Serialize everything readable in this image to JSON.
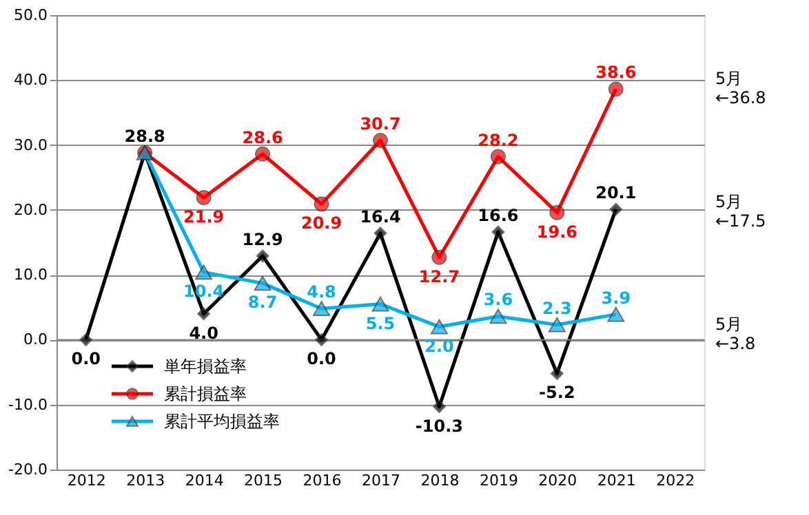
{
  "chart_data": {
    "type": "line",
    "categories": [
      "2012",
      "2013",
      "2014",
      "2015",
      "2016",
      "2017",
      "2018",
      "2019",
      "2020",
      "2021",
      "2022"
    ],
    "series": [
      {
        "name": "単年損益率",
        "color": "#000000",
        "marker": "diamond",
        "values": [
          0.0,
          28.8,
          4.0,
          12.9,
          0.0,
          16.4,
          -10.3,
          16.6,
          -5.2,
          20.1,
          null
        ],
        "value_labels": [
          "0.0",
          "28.8",
          "4.0",
          "12.9",
          "0.0",
          "16.4",
          "-10.3",
          "16.6",
          "-5.2",
          "20.1",
          null
        ]
      },
      {
        "name": "累計損益率",
        "color": "#ff0000",
        "marker": "circle",
        "values": [
          null,
          28.8,
          21.9,
          28.6,
          20.9,
          30.7,
          12.7,
          28.2,
          19.6,
          38.6,
          null
        ],
        "value_labels": [
          null,
          null,
          "21.9",
          "28.6",
          "20.9",
          "30.7",
          "12.7",
          "28.2",
          "19.6",
          "38.6",
          null
        ]
      },
      {
        "name": "累計平均損益率",
        "color": "#00b0f0",
        "marker": "triangle",
        "values": [
          null,
          28.8,
          10.4,
          8.7,
          4.8,
          5.5,
          2.0,
          3.6,
          2.3,
          3.9,
          null
        ],
        "value_labels": [
          null,
          null,
          "10.4",
          "8.7",
          "4.8",
          "5.5",
          "2.0",
          "3.6",
          "2.3",
          "3.9",
          null
        ]
      }
    ],
    "ylim": [
      -20,
      50
    ],
    "yticks": [
      {
        "value": -20,
        "label": "-20.0"
      },
      {
        "value": -10,
        "label": "-10.0"
      },
      {
        "value": 0,
        "label": "0.0"
      },
      {
        "value": 10,
        "label": "10.0"
      },
      {
        "value": 20,
        "label": "20.0"
      },
      {
        "value": 30,
        "label": "30.0"
      },
      {
        "value": 40,
        "label": "40.0"
      },
      {
        "value": 50,
        "label": "50.0"
      }
    ],
    "grid": "y",
    "legend": "bottom left",
    "line_style": "solid",
    "annotations": [
      "5月\n←36.8",
      "5月\n←17.5",
      "5月\n←3.8"
    ]
  }
}
